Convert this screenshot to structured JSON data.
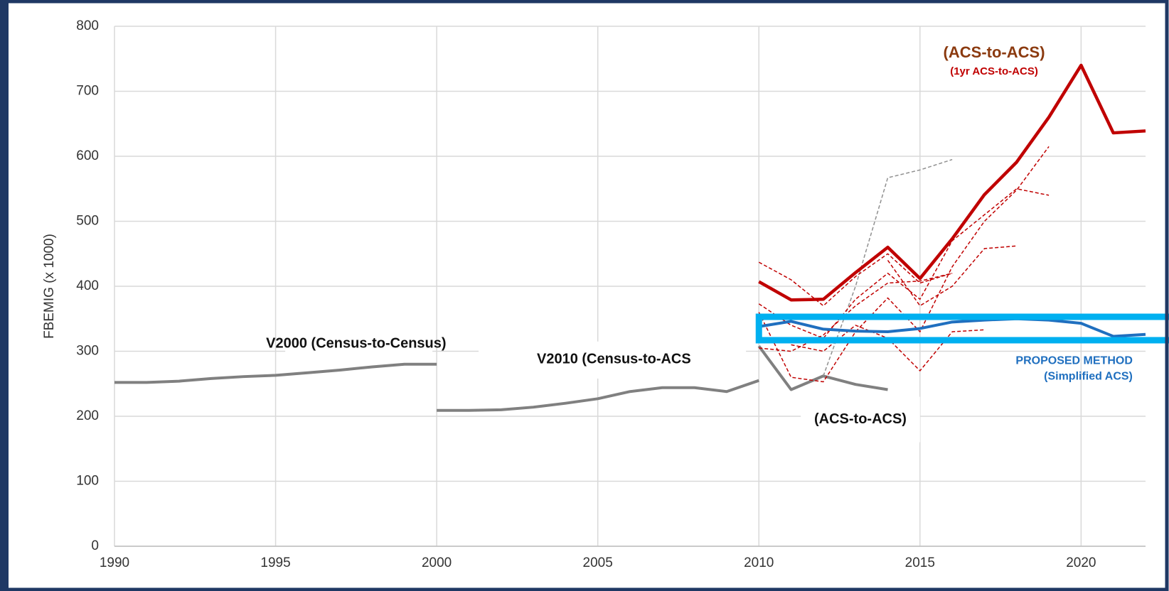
{
  "chart_data": {
    "type": "line",
    "y_label": "FBEMIG  (x 1000)",
    "xlim": [
      1990,
      2022
    ],
    "xticks": [
      1990,
      1995,
      2000,
      2005,
      2010,
      2015,
      2020
    ],
    "ylim": [
      0,
      800
    ],
    "yticks": [
      0,
      100,
      200,
      300,
      400,
      500,
      600,
      700,
      800
    ],
    "grid": true,
    "series": [
      {
        "color": "#808080",
        "width": 4,
        "dashed": false,
        "x": [
          1990,
          1991,
          1992,
          1993,
          1994,
          1995,
          1996,
          1997,
          1998,
          1999,
          2000
        ],
        "values": [
          252,
          252,
          254,
          258,
          261,
          263,
          267,
          271,
          276,
          280,
          280
        ]
      },
      {
        "color": "#808080",
        "width": 4,
        "dashed": false,
        "x": [
          2000,
          2001,
          2002,
          2003,
          2004,
          2005,
          2006,
          2007,
          2008,
          2009,
          2010
        ],
        "values": [
          209,
          209,
          210,
          214,
          220,
          227,
          238,
          244,
          244,
          238,
          255
        ]
      },
      {
        "color": "#808080",
        "width": 4,
        "dashed": false,
        "x": [
          2010,
          2011,
          2012,
          2013,
          2014
        ],
        "values": [
          308,
          241,
          262,
          249,
          241
        ]
      },
      {
        "color": "#909090",
        "width": 1.5,
        "dashed": true,
        "x": [
          2012,
          2013,
          2014,
          2015,
          2016
        ],
        "values": [
          262,
          400,
          567,
          579,
          595
        ]
      },
      {
        "color": "#c00000",
        "width": 1.5,
        "dashed": true,
        "x": [
          2010,
          2011,
          2012,
          2013,
          2014,
          2015,
          2016
        ],
        "values": [
          437,
          410,
          370,
          415,
          450,
          405,
          420
        ]
      },
      {
        "color": "#c00000",
        "width": 1.5,
        "dashed": true,
        "x": [
          2010,
          2011,
          2012,
          2013,
          2014,
          2015,
          2016,
          2017,
          2018,
          2019
        ],
        "values": [
          373,
          340,
          320,
          380,
          420,
          380,
          470,
          510,
          550,
          540
        ]
      },
      {
        "color": "#c00000",
        "width": 1.5,
        "dashed": true,
        "x": [
          2010,
          2011,
          2012,
          2013,
          2014,
          2015,
          2016
        ],
        "values": [
          305,
          300,
          325,
          370,
          405,
          408,
          420
        ]
      },
      {
        "color": "#c00000",
        "width": 1.5,
        "dashed": true,
        "x": [
          2010,
          2011,
          2012,
          2013,
          2014,
          2015,
          2016,
          2017,
          2018,
          2019
        ],
        "values": [
          360,
          260,
          253,
          330,
          382,
          330,
          430,
          500,
          548,
          615
        ]
      },
      {
        "color": "#c00000",
        "width": 1.5,
        "dashed": true,
        "x": [
          2011,
          2012,
          2013,
          2014,
          2015,
          2016,
          2017
        ],
        "values": [
          310,
          300,
          340,
          320,
          270,
          330,
          333
        ]
      },
      {
        "color": "#c00000",
        "width": 1.5,
        "dashed": true,
        "x": [
          2014,
          2015,
          2016,
          2017,
          2018
        ],
        "values": [
          440,
          370,
          400,
          458,
          462
        ]
      },
      {
        "color": "#c00000",
        "width": 4.5,
        "dashed": false,
        "x": [
          2010,
          2011,
          2012,
          2013,
          2014,
          2015,
          2016,
          2017,
          2018,
          2019,
          2020,
          2021,
          2022
        ],
        "values": [
          407,
          379,
          380,
          421,
          460,
          412,
          473,
          541,
          591,
          660,
          740,
          636,
          639
        ]
      },
      {
        "color": "#1f6fbf",
        "width": 4,
        "dashed": false,
        "x": [
          2010,
          2011,
          2012,
          2013,
          2014,
          2015,
          2016,
          2017,
          2018,
          2019,
          2020,
          2021,
          2022
        ],
        "values": [
          338,
          346,
          334,
          331,
          330,
          335,
          345,
          348,
          350,
          348,
          343,
          323,
          326
        ]
      }
    ],
    "annotations": [
      "(ACS-to-ACS)",
      "(1yr ACS-to-ACS)",
      "V2000 (Census-to-Census)",
      "V2010 (Census-to-ACS",
      "(ACS-to-ACS)",
      "PROPOSED METHOD",
      "(Simplified ACS)"
    ]
  }
}
